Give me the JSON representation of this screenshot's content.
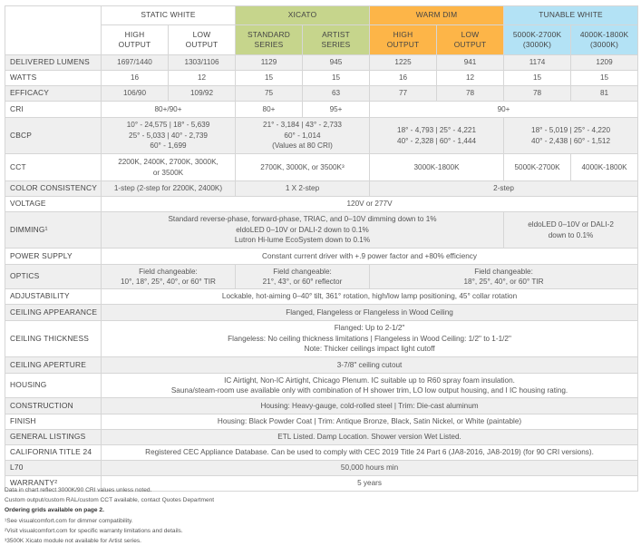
{
  "header": {
    "groups": [
      "STATIC WHITE",
      "XICATO",
      "WARM DIM",
      "TUNABLE WHITE"
    ],
    "sub": [
      [
        "HIGH",
        "OUTPUT"
      ],
      [
        "LOW",
        "OUTPUT"
      ],
      [
        "STANDARD",
        "SERIES"
      ],
      [
        "ARTIST",
        "SERIES"
      ],
      [
        "HIGH",
        "OUTPUT"
      ],
      [
        "LOW",
        "OUTPUT"
      ],
      [
        "5000K-2700K",
        "(3000K)"
      ],
      [
        "4000K-1800K",
        "(3000K)"
      ]
    ]
  },
  "colors": {
    "xicato": "#c6d58c",
    "warm_dim": "#fdb548",
    "tunable_white": "#b3e2f5",
    "stripe": "#efefef"
  },
  "rows": [
    {
      "label": "DELIVERED LUMENS",
      "cells": [
        {
          "t": [
            "1697/1440"
          ],
          "s": 1
        },
        {
          "t": [
            "1303/1106"
          ],
          "s": 1
        },
        {
          "t": [
            "1129"
          ],
          "s": 1
        },
        {
          "t": [
            "945"
          ],
          "s": 1
        },
        {
          "t": [
            "1225"
          ],
          "s": 1
        },
        {
          "t": [
            "941"
          ],
          "s": 1
        },
        {
          "t": [
            "1174"
          ],
          "s": 1
        },
        {
          "t": [
            "1209"
          ],
          "s": 1
        }
      ]
    },
    {
      "label": "WATTS",
      "cells": [
        {
          "t": [
            "16"
          ],
          "s": 1
        },
        {
          "t": [
            "12"
          ],
          "s": 1
        },
        {
          "t": [
            "15"
          ],
          "s": 1
        },
        {
          "t": [
            "15"
          ],
          "s": 1
        },
        {
          "t": [
            "16"
          ],
          "s": 1
        },
        {
          "t": [
            "12"
          ],
          "s": 1
        },
        {
          "t": [
            "15"
          ],
          "s": 1
        },
        {
          "t": [
            "15"
          ],
          "s": 1
        }
      ]
    },
    {
      "label": "EFFICACY",
      "cells": [
        {
          "t": [
            "106/90"
          ],
          "s": 1
        },
        {
          "t": [
            "109/92"
          ],
          "s": 1
        },
        {
          "t": [
            "75"
          ],
          "s": 1
        },
        {
          "t": [
            "63"
          ],
          "s": 1
        },
        {
          "t": [
            "77"
          ],
          "s": 1
        },
        {
          "t": [
            "78"
          ],
          "s": 1
        },
        {
          "t": [
            "78"
          ],
          "s": 1
        },
        {
          "t": [
            "81"
          ],
          "s": 1
        }
      ]
    },
    {
      "label": "CRI",
      "cells": [
        {
          "t": [
            "80+/90+"
          ],
          "s": 2
        },
        {
          "t": [
            "80+"
          ],
          "s": 1
        },
        {
          "t": [
            "95+"
          ],
          "s": 1
        },
        {
          "t": [
            "90+"
          ],
          "s": 4
        }
      ]
    },
    {
      "label": "CBCP",
      "cells": [
        {
          "t": [
            "10° - 24,575 | 18° - 5,639",
            "25° - 5,033 | 40° - 2,739",
            "60° - 1,699"
          ],
          "s": 2
        },
        {
          "t": [
            "21° - 3,184 | 43° - 2,733",
            "60° - 1,014",
            "(Values at 80 CRI)"
          ],
          "s": 2
        },
        {
          "t": [
            "18° - 4,793 | 25° - 4,221",
            "40° - 2,328 | 60° - 1,444"
          ],
          "s": 2
        },
        {
          "t": [
            "18° - 5,019 | 25° - 4,220",
            "40° - 2,438 | 60° - 1,512"
          ],
          "s": 2
        }
      ]
    },
    {
      "label": "CCT",
      "cells": [
        {
          "t": [
            "2200K, 2400K, 2700K, 3000K,",
            "or 3500K"
          ],
          "s": 2
        },
        {
          "t": [
            "2700K, 3000K, or 3500K³"
          ],
          "s": 2
        },
        {
          "t": [
            "3000K-1800K"
          ],
          "s": 2
        },
        {
          "t": [
            "5000K-2700K"
          ],
          "s": 1
        },
        {
          "t": [
            "4000K-1800K"
          ],
          "s": 1
        }
      ]
    },
    {
      "label": "COLOR CONSISTENCY",
      "cells": [
        {
          "t": [
            "1-step (2-step for 2200K, 2400K)"
          ],
          "s": 2
        },
        {
          "t": [
            "1 X 2-step"
          ],
          "s": 2
        },
        {
          "t": [
            "2-step"
          ],
          "s": 4
        }
      ]
    },
    {
      "label": "VOLTAGE",
      "cells": [
        {
          "t": [
            "120V or 277V"
          ],
          "s": 8
        }
      ]
    },
    {
      "label": "DIMMING¹",
      "cells": [
        {
          "t": [
            "Standard reverse-phase, forward-phase, TRIAC, and 0–10V dimming down to 1%",
            "eldoLED 0–10V or DALI-2 down to 0.1%",
            "Lutron Hi-lume EcoSystem down to 0.1%"
          ],
          "s": 6
        },
        {
          "t": [
            "eldoLED 0–10V or DALI-2",
            "down to 0.1%"
          ],
          "s": 2
        }
      ]
    },
    {
      "label": "POWER SUPPLY",
      "cells": [
        {
          "t": [
            "Constant current driver with +.9 power factor and +80% efficiency"
          ],
          "s": 8
        }
      ]
    },
    {
      "label": "OPTICS",
      "cells": [
        {
          "t": [
            "Field changeable:",
            "10°, 18°, 25°, 40°, or 60° TIR"
          ],
          "s": 2
        },
        {
          "t": [
            "Field changeable:",
            "21°, 43°, or 60° reflector"
          ],
          "s": 2
        },
        {
          "t": [
            "Field changeable:",
            "18°, 25°, 40°, or 60° TIR"
          ],
          "s": 4
        }
      ]
    },
    {
      "label": "ADJUSTABILITY",
      "cells": [
        {
          "t": [
            "Lockable, hot-aiming 0–40° tilt, 361° rotation, high/low lamp positioning, 45° collar rotation"
          ],
          "s": 8
        }
      ]
    },
    {
      "label": "CEILING APPEARANCE",
      "cells": [
        {
          "t": [
            "Flanged, Flangeless or Flangeless in Wood Ceiling"
          ],
          "s": 8
        }
      ]
    },
    {
      "label": "CEILING THICKNESS",
      "cells": [
        {
          "t": [
            "Flanged: Up to 2-1/2\"",
            "Flangeless: No ceiling thickness limitations | Flangeless in Wood Ceiling: 1/2\" to 1-1/2\"",
            "Note: Thicker ceilings impact light cutoff"
          ],
          "s": 8
        }
      ]
    },
    {
      "label": "CEILING APERTURE",
      "cells": [
        {
          "t": [
            "3-7/8\" ceiling cutout"
          ],
          "s": 8
        }
      ]
    },
    {
      "label": "HOUSING",
      "cells": [
        {
          "t": [
            "IC Airtight, Non-IC Airtight, Chicago Plenum. IC suitable up to R60 spray foam insulation.",
            "Sauna/steam-room use available only with combination of H shower trim, LO low output housing, and I IC housing rating."
          ],
          "s": 8
        }
      ]
    },
    {
      "label": "CONSTRUCTION",
      "cells": [
        {
          "t": [
            "Housing: Heavy-gauge, cold-rolled steel | Trim: Die-cast aluminum"
          ],
          "s": 8
        }
      ]
    },
    {
      "label": "FINISH",
      "cells": [
        {
          "t": [
            "Housing: Black Powder Coat | Trim: Antique Bronze, Black, Satin Nickel, or White (paintable)"
          ],
          "s": 8
        }
      ]
    },
    {
      "label": "GENERAL LISTINGS",
      "cells": [
        {
          "t": [
            "ETL Listed. Damp Location. Shower version Wet Listed."
          ],
          "s": 8
        }
      ]
    },
    {
      "label": "CALIFORNIA TITLE 24",
      "cells": [
        {
          "t": [
            "Registered CEC Appliance Database. Can be used to comply with CEC 2019 Title 24 Part 6 (JA8-2016, JA8-2019) (for 90 CRI versions)."
          ],
          "s": 8
        }
      ]
    },
    {
      "label": "L70",
      "cells": [
        {
          "t": [
            "50,000 hours min"
          ],
          "s": 8
        }
      ]
    },
    {
      "label": "WARRANTY²",
      "cells": [
        {
          "t": [
            "5 years"
          ],
          "s": 8
        }
      ]
    }
  ],
  "notes": [
    "Data in chart reflect 3000K/90 CRI values unless noted.",
    "Custom output/custom RAL/custom CCT available, contact Quotes Department",
    "Ordering grids available on page 2.",
    "¹See visualcomfort.com for dimmer compatibility.",
    "²Visit visualcomfort.com for specific warranty limitations and details.",
    "³3500K Xicato module not available for Artist series."
  ]
}
